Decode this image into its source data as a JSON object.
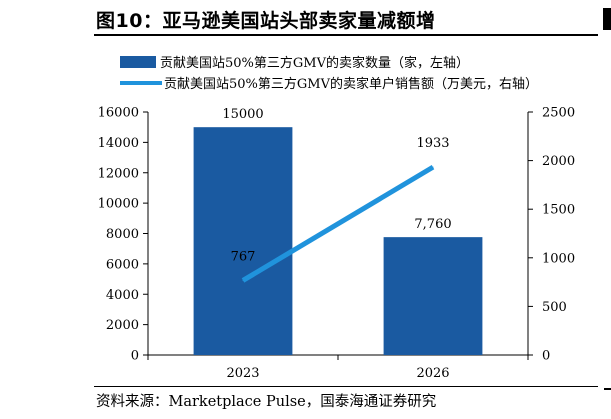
{
  "title": "图10：亚马逊美国站头部卖家量减额增",
  "source": "资料来源：Marketplace Pulse，国泰海通证券研究",
  "colors": {
    "bar": "#1a5aa1",
    "line": "#2093dc",
    "axis": "#000000"
  },
  "chart_data": {
    "type": "bar",
    "categories": [
      "2023",
      "2026"
    ],
    "series": [
      {
        "name": "贡献美国站50%第三方GMV的卖家数量（家，左轴）",
        "type": "bar",
        "axis": "left",
        "values": [
          15000,
          7760
        ],
        "labels": [
          "15000",
          "7,760"
        ]
      },
      {
        "name": "贡献美国站50%第三方GMV的卖家单户销售额（万美元，右轴）",
        "type": "line",
        "axis": "right",
        "values": [
          767,
          1933
        ],
        "labels": [
          "767",
          "1933"
        ]
      }
    ],
    "left_axis": {
      "ylim": [
        0,
        16000
      ],
      "ticks": [
        "0",
        "2000",
        "4000",
        "6000",
        "8000",
        "10000",
        "12000",
        "14000",
        "16000"
      ]
    },
    "right_axis": {
      "ylim": [
        0,
        2500
      ],
      "ticks": [
        "0",
        "500",
        "1000",
        "1500",
        "2000",
        "2500"
      ]
    },
    "legend_position": "top",
    "grid": false
  }
}
